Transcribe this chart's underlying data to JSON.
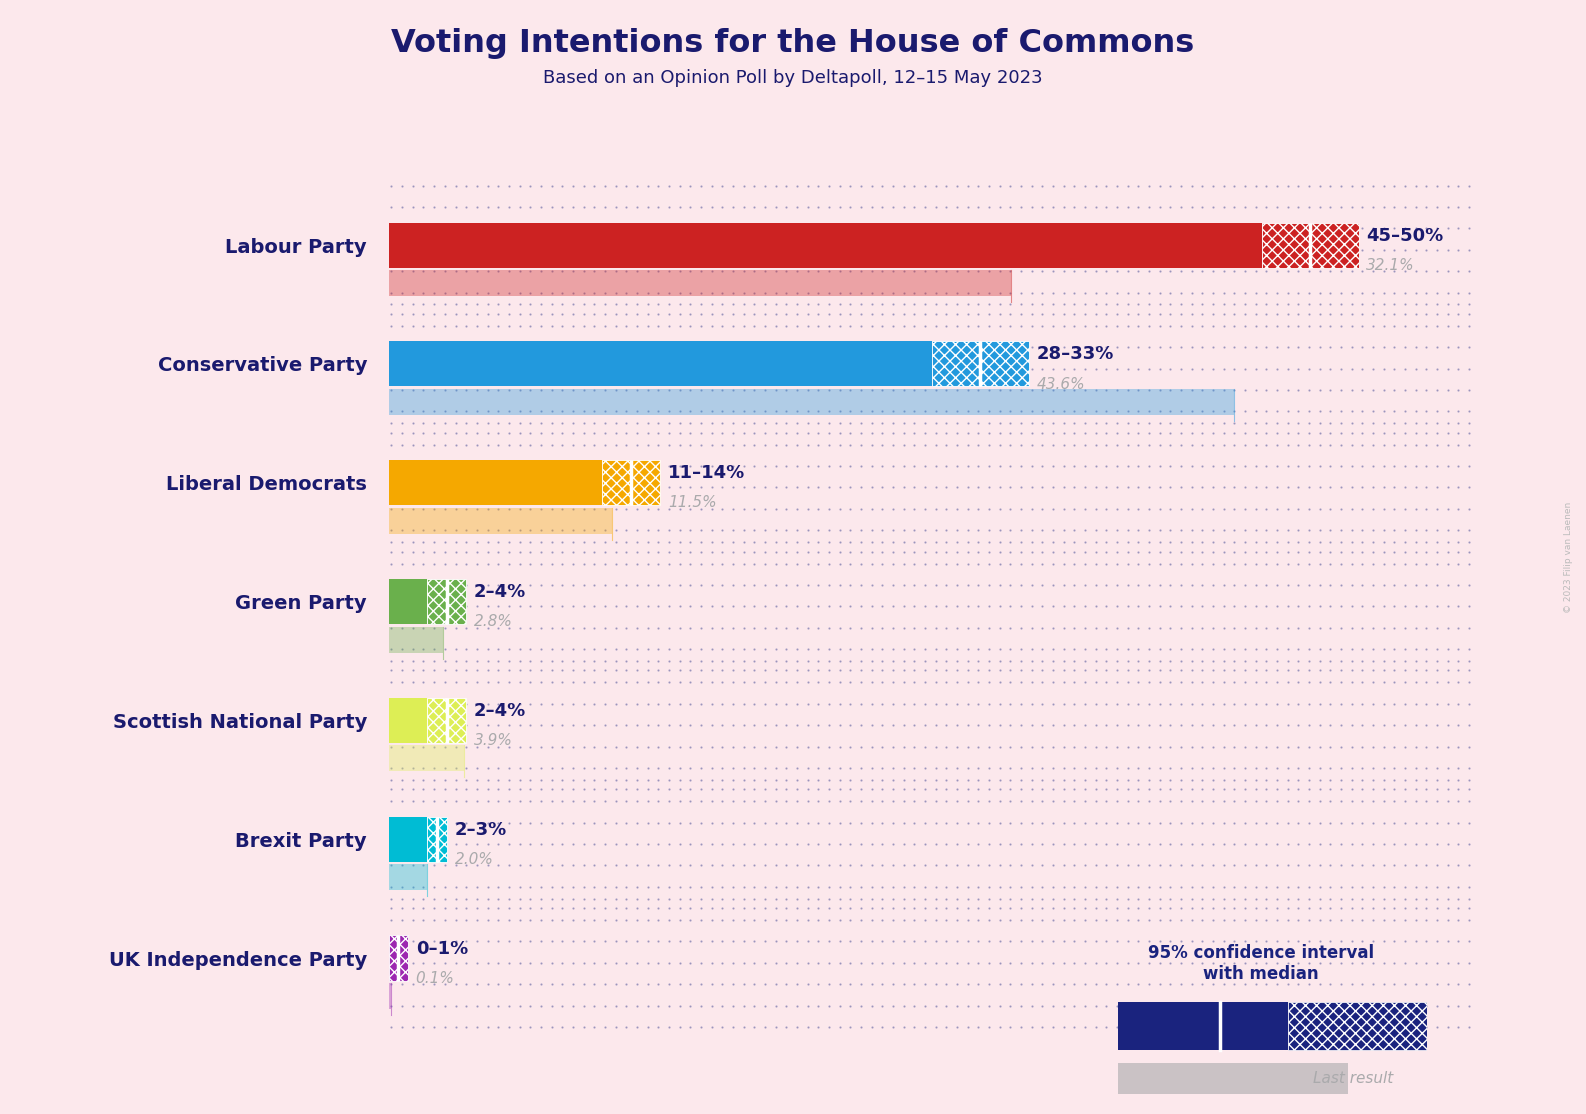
{
  "title": "Voting Intentions for the House of Commons",
  "subtitle": "Based on an Opinion Poll by Deltapoll, 12–15 May 2023",
  "background_color": "#fce8ec",
  "title_color": "#1a1a6e",
  "subtitle_color": "#1a1a6e",
  "parties": [
    "Labour Party",
    "Conservative Party",
    "Liberal Democrats",
    "Green Party",
    "Scottish National Party",
    "Brexit Party",
    "UK Independence Party"
  ],
  "colors": [
    "#cc2222",
    "#2299dd",
    "#f5a800",
    "#6ab04c",
    "#ddee55",
    "#00bcd4",
    "#9c27b0"
  ],
  "ci_low": [
    45,
    28,
    11,
    2,
    2,
    2,
    0
  ],
  "ci_high": [
    50,
    33,
    14,
    4,
    4,
    3,
    1
  ],
  "median": [
    47.5,
    30.5,
    12.5,
    3.0,
    3.0,
    2.5,
    0.5
  ],
  "last_result": [
    32.1,
    43.6,
    11.5,
    2.8,
    3.9,
    2.0,
    0.1
  ],
  "label_range": [
    "45–50%",
    "28–33%",
    "11–14%",
    "2–4%",
    "2–4%",
    "2–3%",
    "0–1%"
  ],
  "label_last": [
    "32.1%",
    "43.6%",
    "11.5%",
    "2.8%",
    "3.9%",
    "2.0%",
    "0.1%"
  ],
  "xlim": [
    0,
    56
  ],
  "dark_blue": "#1a237e",
  "last_result_color": "#aaaaac",
  "label_color": "#1a1a6e",
  "last_label_color": "#aaaaac",
  "copyright": "© 2023 Filip van Laenen"
}
